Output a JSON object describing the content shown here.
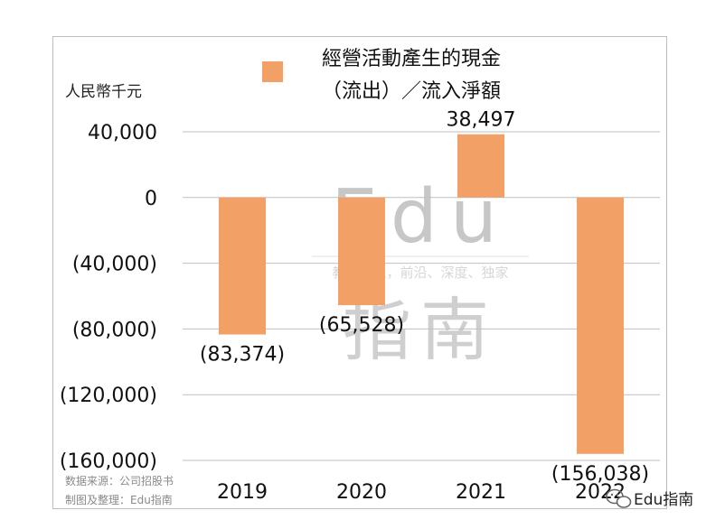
{
  "chart_data": {
    "type": "bar",
    "title_lines": [
      "經營活動產生的現金",
      "（流出）／流入淨額"
    ],
    "ylabel": "人民幣千元",
    "categories": [
      "2019",
      "2020",
      "2021",
      "2022"
    ],
    "series": [
      {
        "name": "經營活動產生的現金（流出）／流入淨額",
        "values": [
          -83374,
          -65528,
          38497,
          -156038
        ]
      }
    ],
    "value_labels": [
      "(83,374)",
      "(65,528)",
      "38,497",
      "(156,038)"
    ],
    "ylim": [
      -160000,
      40000
    ],
    "yticks": [
      40000,
      0,
      -40000,
      -80000,
      -120000,
      -160000
    ],
    "ytick_labels": [
      "40,000",
      "0",
      "(40,000)",
      "(80,000)",
      "(120,000)",
      "(160,000)"
    ],
    "grid": true,
    "legend_position": "top-center",
    "bar_color": "#F2A066"
  },
  "watermark": {
    "brand": "Edu",
    "brand_cn": "指南",
    "tagline": "教育行业，前沿、深度、独家"
  },
  "source": {
    "line1": "数据来源：公司招股书",
    "line2": "制图及整理：Edu指南"
  },
  "wechat_badge": {
    "label": "Edu指南",
    "icon": "wechat-icon"
  }
}
